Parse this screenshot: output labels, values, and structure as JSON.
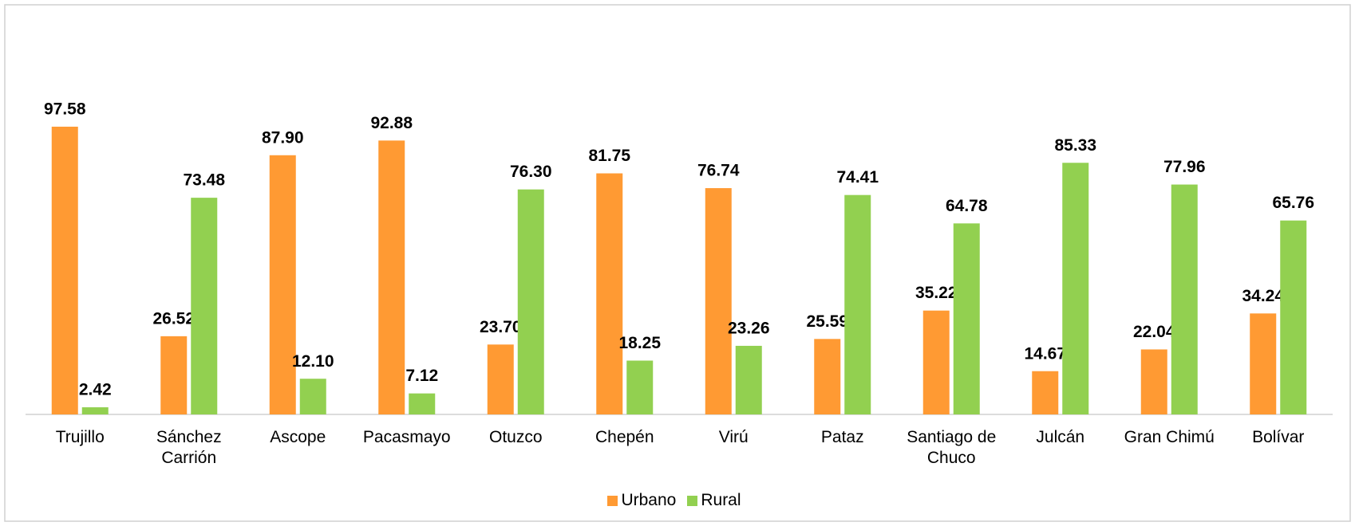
{
  "chart_data": {
    "type": "bar",
    "categories": [
      "Trujillo",
      "Sánchez Carrión",
      "Ascope",
      "Pacasmayo",
      "Otuzco",
      "Chepén",
      "Virú",
      "Pataz",
      "Santiago de Chuco",
      "Julcán",
      "Gran Chimú",
      "Bolívar"
    ],
    "series": [
      {
        "name": "Urbano",
        "color": "#ff9a33",
        "values": [
          97.58,
          26.52,
          87.9,
          92.88,
          23.7,
          81.75,
          76.74,
          25.59,
          35.22,
          14.67,
          22.04,
          34.24
        ],
        "value_labels": [
          "97.58",
          "26.52",
          "87.90",
          "92.88",
          "23.70",
          "81.75",
          "76.74",
          "25.59",
          "35.22",
          "14.67",
          "22.04",
          "34.24"
        ]
      },
      {
        "name": "Rural",
        "color": "#92d050",
        "values": [
          2.42,
          73.48,
          12.1,
          7.12,
          76.3,
          18.25,
          23.26,
          74.41,
          64.78,
          85.33,
          77.96,
          65.76
        ],
        "value_labels": [
          "2.42",
          "73.48",
          "12.10",
          "7.12",
          "76.30",
          "18.25",
          "23.26",
          "74.41",
          "64.78",
          "85.33",
          "77.96",
          "65.76"
        ]
      }
    ],
    "ylim": [
      0,
      100
    ],
    "legend": "bottom"
  }
}
